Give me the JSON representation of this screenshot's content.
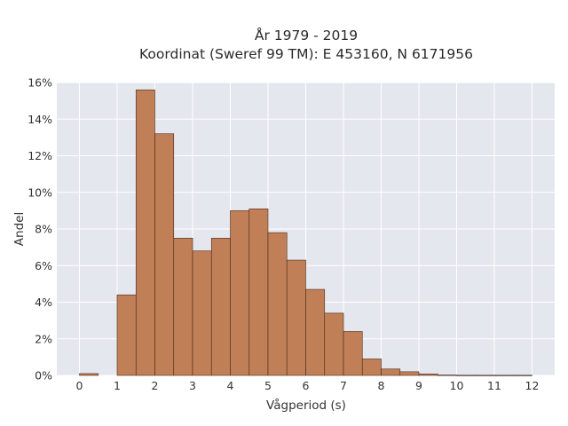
{
  "chart_data": {
    "type": "bar",
    "title": [
      "År 1979 - 2019",
      "Koordinat (Sweref 99 TM): E 453160, N 6171956"
    ],
    "xlabel": "Vågperiod (s)",
    "ylabel": "Andel",
    "xlim": [
      -0.6,
      12.6
    ],
    "ylim": [
      0,
      0.16
    ],
    "x_ticks": [
      "0",
      "1",
      "2",
      "3",
      "4",
      "5",
      "6",
      "7",
      "8",
      "9",
      "10",
      "11",
      "12"
    ],
    "y_ticks": [
      "0%",
      "2%",
      "4%",
      "6%",
      "8%",
      "10%",
      "12%",
      "14%",
      "16%"
    ],
    "grid": true,
    "bin_width": 0.5,
    "bins": [
      {
        "x0": 0.0,
        "x1": 0.5,
        "value": 0.001
      },
      {
        "x0": 0.5,
        "x1": 1.0,
        "value": 0.0
      },
      {
        "x0": 1.0,
        "x1": 1.5,
        "value": 0.044
      },
      {
        "x0": 1.5,
        "x1": 2.0,
        "value": 0.156
      },
      {
        "x0": 2.0,
        "x1": 2.5,
        "value": 0.132
      },
      {
        "x0": 2.5,
        "x1": 3.0,
        "value": 0.075
      },
      {
        "x0": 3.0,
        "x1": 3.5,
        "value": 0.068
      },
      {
        "x0": 3.5,
        "x1": 4.0,
        "value": 0.075
      },
      {
        "x0": 4.0,
        "x1": 4.5,
        "value": 0.09
      },
      {
        "x0": 4.5,
        "x1": 5.0,
        "value": 0.091
      },
      {
        "x0": 5.0,
        "x1": 5.5,
        "value": 0.078
      },
      {
        "x0": 5.5,
        "x1": 6.0,
        "value": 0.063
      },
      {
        "x0": 6.0,
        "x1": 6.5,
        "value": 0.047
      },
      {
        "x0": 6.5,
        "x1": 7.0,
        "value": 0.034
      },
      {
        "x0": 7.0,
        "x1": 7.5,
        "value": 0.024
      },
      {
        "x0": 7.5,
        "x1": 8.0,
        "value": 0.009
      },
      {
        "x0": 8.0,
        "x1": 8.5,
        "value": 0.0035
      },
      {
        "x0": 8.5,
        "x1": 9.0,
        "value": 0.002
      },
      {
        "x0": 9.0,
        "x1": 9.5,
        "value": 0.0008
      },
      {
        "x0": 9.5,
        "x1": 10.0,
        "value": 0.0002
      },
      {
        "x0": 10.0,
        "x1": 10.5,
        "value": 0.0001
      },
      {
        "x0": 10.5,
        "x1": 11.0,
        "value": 0.0001
      },
      {
        "x0": 11.0,
        "x1": 11.5,
        "value": 0.0001
      },
      {
        "x0": 11.5,
        "x1": 12.0,
        "value": 0.0001
      }
    ],
    "colors": {
      "bar_fill": "#c07f57",
      "bar_stroke": "#4a2a18",
      "plot_bg": "#e5e7ef",
      "grid": "#ffffff"
    }
  }
}
